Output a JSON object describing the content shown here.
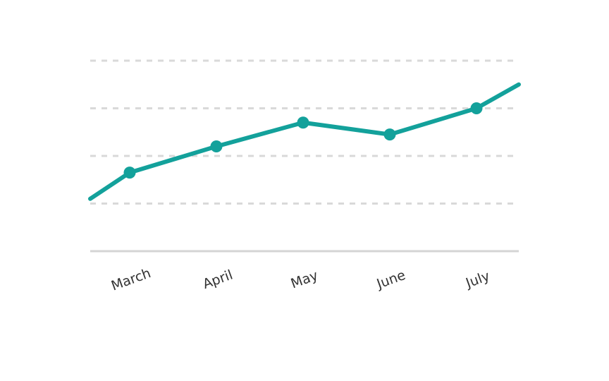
{
  "chart_data": {
    "type": "line",
    "categories": [
      "March",
      "April",
      "May",
      "June",
      "July"
    ],
    "series": [
      {
        "values": [
          1.65,
          2.2,
          2.7,
          2.45,
          3.0
        ],
        "color": "#13a19b"
      }
    ],
    "line_extends_past_first_and_last_category": true,
    "values_at_plot_edges": {
      "left": 1.1,
      "right": 3.5
    },
    "ylim": [
      0,
      4
    ],
    "gridlines": [
      1,
      2,
      3,
      4
    ],
    "ytick_labels_shown": false,
    "grid": true,
    "legend": "none",
    "title": "",
    "xlabel": "",
    "ylabel": ""
  }
}
